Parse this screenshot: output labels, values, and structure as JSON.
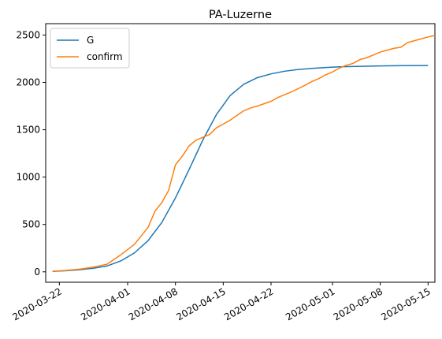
{
  "chart_data": {
    "type": "line",
    "title": "PA-Luzerne",
    "xlabel": "",
    "ylabel": "",
    "x_type": "date",
    "xlim": [
      "2020-03-20",
      "2020-05-16"
    ],
    "ylim": [
      -110,
      2620
    ],
    "grid": false,
    "legend_position": "top-left",
    "x_ticks": [
      "2020-03-22",
      "2020-04-01",
      "2020-04-08",
      "2020-04-15",
      "2020-04-22",
      "2020-05-01",
      "2020-05-08",
      "2020-05-15"
    ],
    "y_ticks": [
      0,
      500,
      1000,
      1500,
      2000,
      2500
    ],
    "series": [
      {
        "name": "G",
        "color": "#1f77b4",
        "points": [
          [
            "2020-03-21",
            4
          ],
          [
            "2020-03-23",
            12
          ],
          [
            "2020-03-25",
            22
          ],
          [
            "2020-03-27",
            38
          ],
          [
            "2020-03-29",
            62
          ],
          [
            "2020-03-31",
            115
          ],
          [
            "2020-04-02",
            200
          ],
          [
            "2020-04-04",
            330
          ],
          [
            "2020-04-06",
            520
          ],
          [
            "2020-04-08",
            780
          ],
          [
            "2020-04-10",
            1080
          ],
          [
            "2020-04-12",
            1390
          ],
          [
            "2020-04-14",
            1660
          ],
          [
            "2020-04-16",
            1860
          ],
          [
            "2020-04-18",
            1980
          ],
          [
            "2020-04-20",
            2050
          ],
          [
            "2020-04-22",
            2090
          ],
          [
            "2020-04-24",
            2118
          ],
          [
            "2020-04-26",
            2136
          ],
          [
            "2020-04-28",
            2148
          ],
          [
            "2020-04-30",
            2157
          ],
          [
            "2020-05-02",
            2164
          ],
          [
            "2020-05-05",
            2170
          ],
          [
            "2020-05-08",
            2174
          ],
          [
            "2020-05-11",
            2177
          ],
          [
            "2020-05-15",
            2178
          ]
        ]
      },
      {
        "name": "confirm",
        "color": "#ff7f0e",
        "points": [
          [
            "2020-03-21",
            5
          ],
          [
            "2020-03-23",
            15
          ],
          [
            "2020-03-25",
            28
          ],
          [
            "2020-03-27",
            50
          ],
          [
            "2020-03-29",
            80
          ],
          [
            "2020-03-31",
            180
          ],
          [
            "2020-04-02",
            290
          ],
          [
            "2020-04-04",
            470
          ],
          [
            "2020-04-05",
            640
          ],
          [
            "2020-04-06",
            730
          ],
          [
            "2020-04-07",
            860
          ],
          [
            "2020-04-08",
            1130
          ],
          [
            "2020-04-09",
            1220
          ],
          [
            "2020-04-10",
            1330
          ],
          [
            "2020-04-11",
            1390
          ],
          [
            "2020-04-12",
            1420
          ],
          [
            "2020-04-13",
            1450
          ],
          [
            "2020-04-14",
            1520
          ],
          [
            "2020-04-15",
            1560
          ],
          [
            "2020-04-16",
            1600
          ],
          [
            "2020-04-17",
            1650
          ],
          [
            "2020-04-18",
            1700
          ],
          [
            "2020-04-19",
            1730
          ],
          [
            "2020-04-20",
            1750
          ],
          [
            "2020-04-21",
            1775
          ],
          [
            "2020-04-22",
            1800
          ],
          [
            "2020-04-23",
            1840
          ],
          [
            "2020-04-24",
            1870
          ],
          [
            "2020-04-25",
            1900
          ],
          [
            "2020-04-26",
            1935
          ],
          [
            "2020-04-27",
            1970
          ],
          [
            "2020-04-28",
            2010
          ],
          [
            "2020-04-29",
            2040
          ],
          [
            "2020-04-30",
            2080
          ],
          [
            "2020-05-01",
            2110
          ],
          [
            "2020-05-02",
            2150
          ],
          [
            "2020-05-03",
            2180
          ],
          [
            "2020-05-04",
            2200
          ],
          [
            "2020-05-05",
            2240
          ],
          [
            "2020-05-06",
            2260
          ],
          [
            "2020-05-07",
            2290
          ],
          [
            "2020-05-08",
            2320
          ],
          [
            "2020-05-09",
            2340
          ],
          [
            "2020-05-10",
            2360
          ],
          [
            "2020-05-11",
            2370
          ],
          [
            "2020-05-12",
            2420
          ],
          [
            "2020-05-13",
            2440
          ],
          [
            "2020-05-14",
            2460
          ],
          [
            "2020-05-15",
            2480
          ],
          [
            "2020-05-16",
            2495
          ]
        ]
      }
    ]
  }
}
